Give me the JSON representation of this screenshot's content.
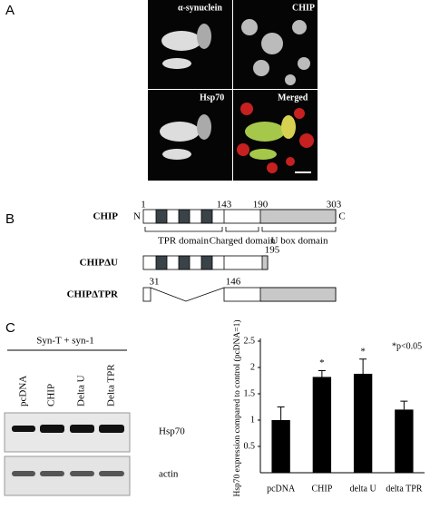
{
  "figure": {
    "panel_a": {
      "label": "A",
      "images": [
        "α-synuclein",
        "CHIP",
        "Hsp70",
        "Merged"
      ]
    },
    "panel_b": {
      "label": "B",
      "chip": {
        "name": "CHIP",
        "n_term": "N",
        "c_term": "C",
        "positions": [
          1,
          143,
          190,
          303
        ],
        "domains": [
          "TPR domain",
          "Charged domain",
          "U box domain"
        ]
      },
      "chip_du": {
        "name": "CHIPΔU",
        "end": 195
      },
      "chip_dtpr": {
        "name": "CHIPΔTPR",
        "positions": [
          31,
          146
        ]
      }
    },
    "panel_c": {
      "label": "C",
      "header": "Syn-T + syn-1",
      "lanes": [
        "pcDNA",
        "CHIP",
        "Delta U",
        "Delta TPR"
      ],
      "blots": [
        "Hsp70",
        "actin"
      ]
    }
  },
  "chart_data": {
    "type": "bar",
    "y_label": "Hsp70 expression compared to control (pcDNA=1)",
    "categories": [
      "pcDNA",
      "CHIP",
      "delta U",
      "delta TPR"
    ],
    "values": [
      1.0,
      1.82,
      1.88,
      1.2
    ],
    "errors": [
      0.25,
      0.12,
      0.28,
      0.16
    ],
    "markers": [
      null,
      "*",
      "*",
      null
    ],
    "annotation": "*p<0.05",
    "color": "#000000",
    "ylim": [
      0,
      2.5
    ],
    "yticks": [
      0.5,
      1,
      1.5,
      2,
      2.5
    ]
  }
}
